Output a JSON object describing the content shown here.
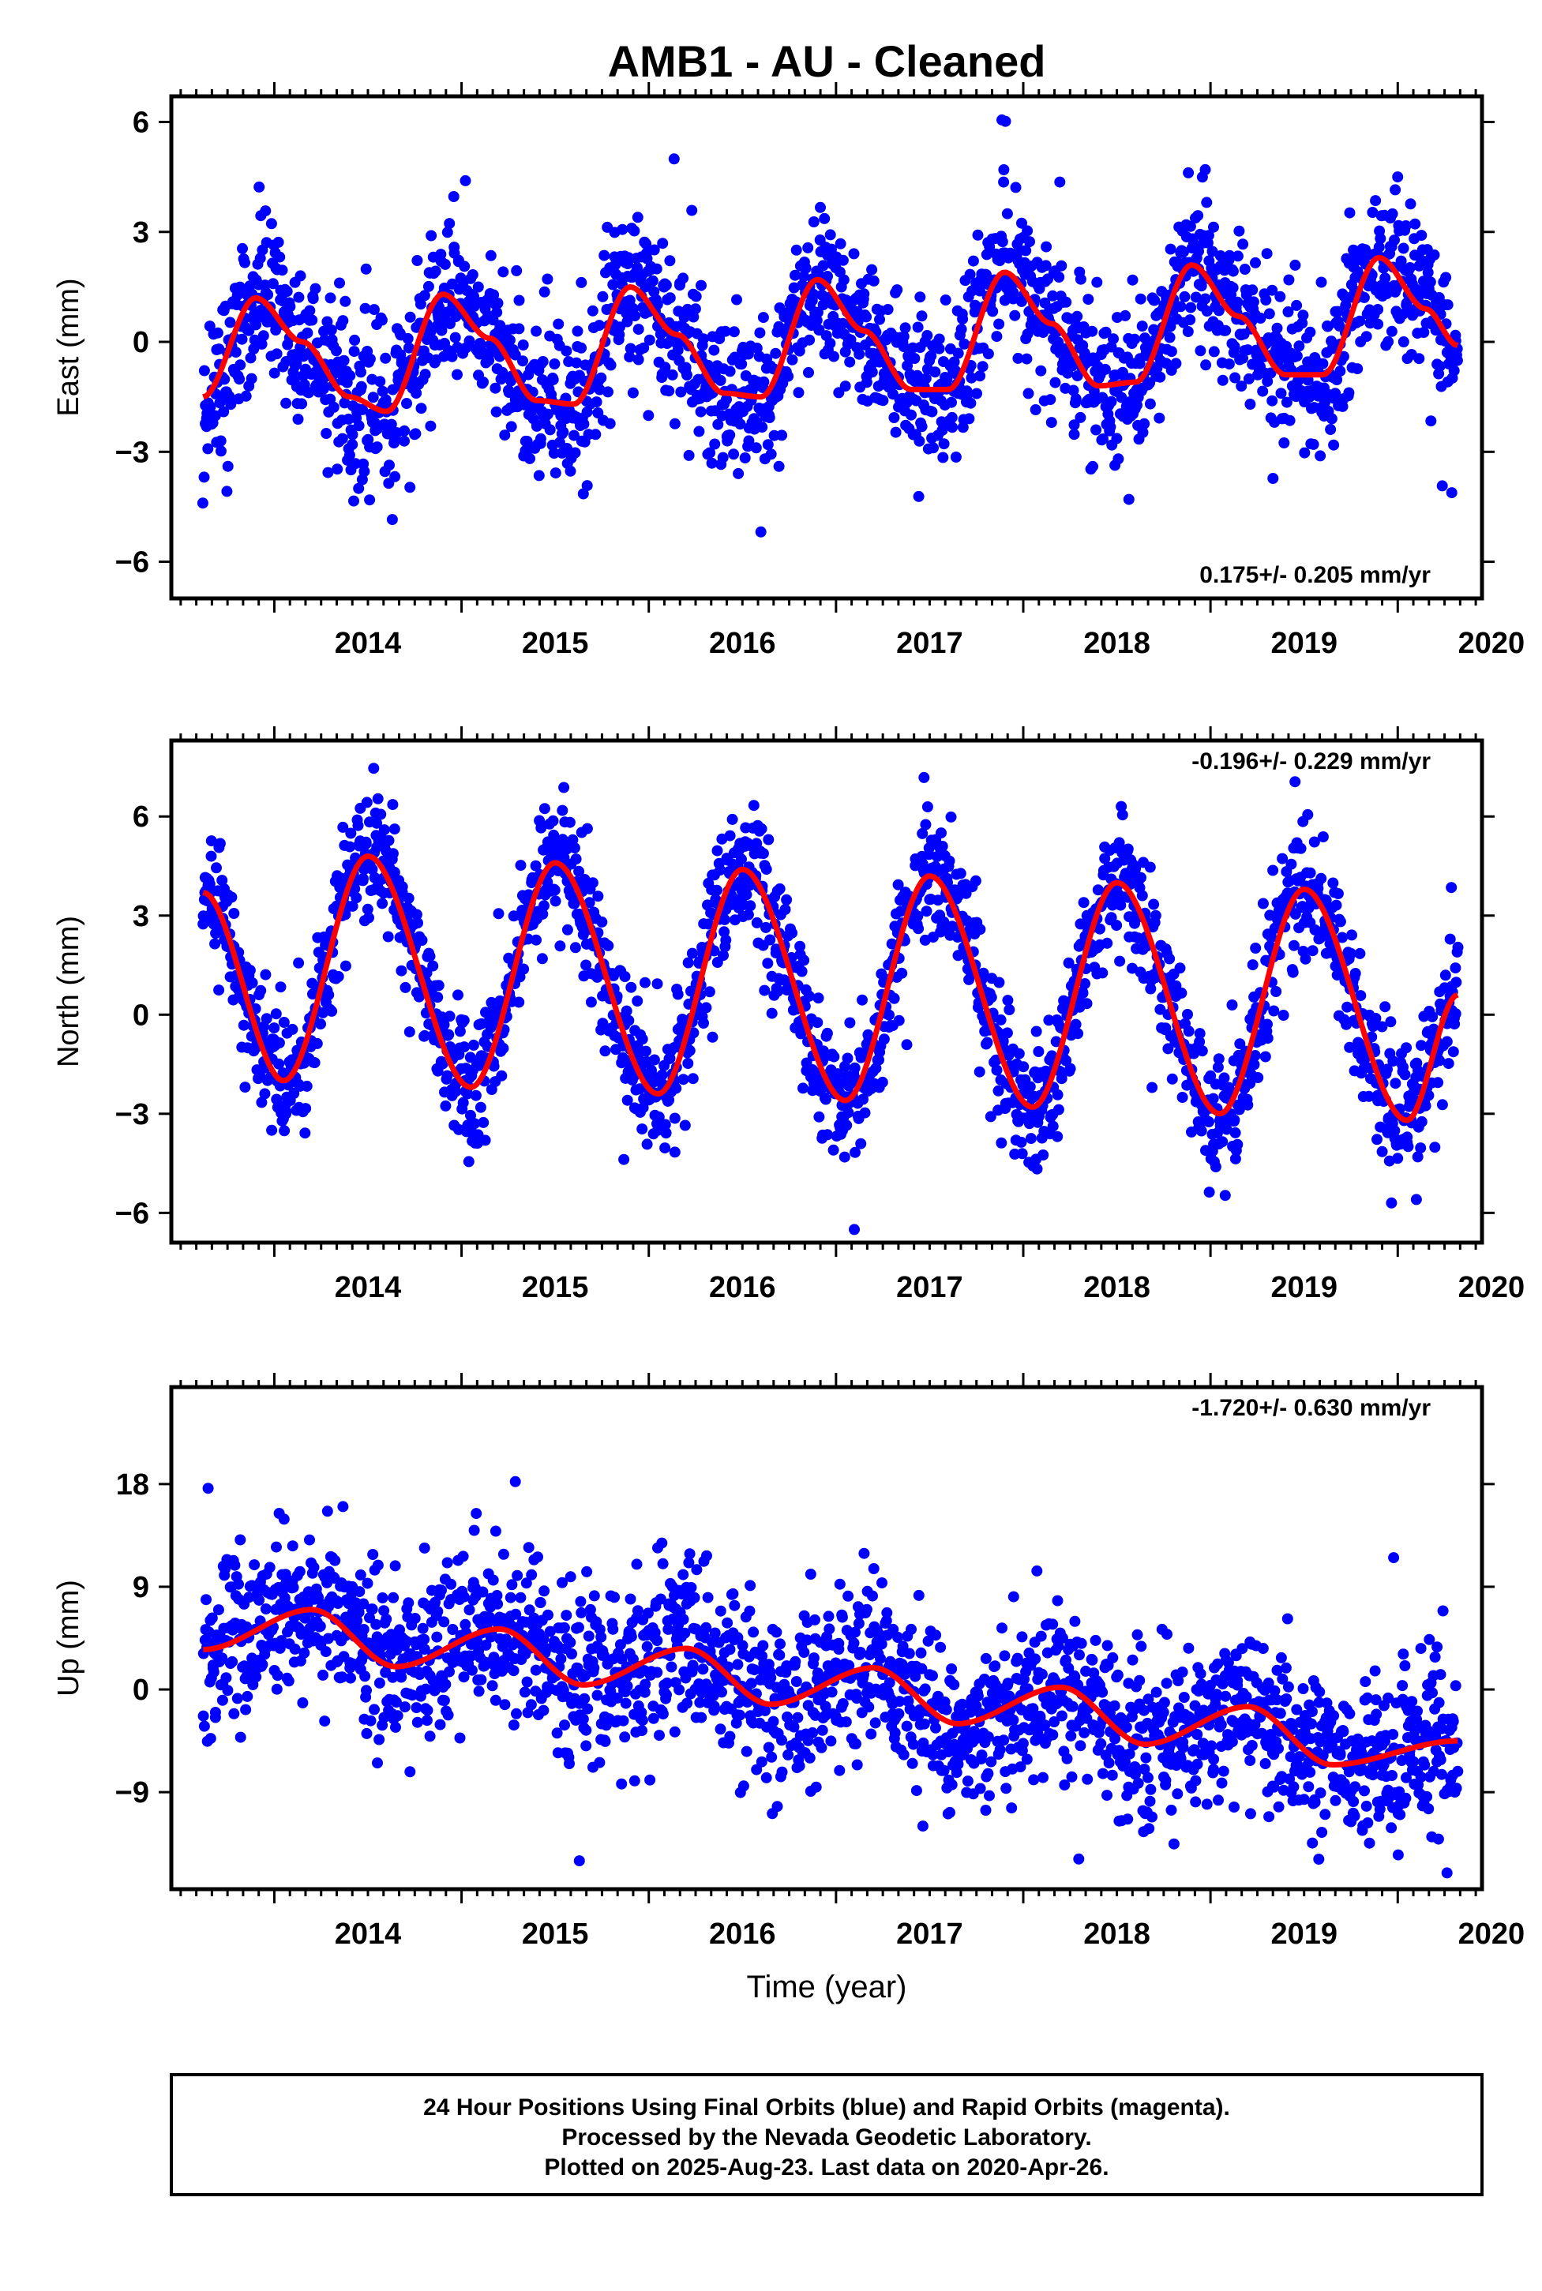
{
  "title": "AMB1  - AU - Cleaned",
  "xlabel": "Time (year)",
  "footer": {
    "line1": "24 Hour Positions Using Final Orbits (blue) and Rapid Orbits (magenta).",
    "line2": "Processed by the Nevada Geodetic Laboratory.",
    "line3": "Plotted on 2025-Aug-23. Last data on 2020-Apr-26."
  },
  "colors": {
    "points": "#0000ff",
    "fit": "#ff0000",
    "frame": "#000000"
  },
  "chart_data": [
    {
      "type": "scatter",
      "ylabel": "East (mm)",
      "rate": "0.175+/- 0.205 mm/yr",
      "xlim": [
        2013.45,
        2020.45
      ],
      "ylim": [
        -7.0,
        6.7
      ],
      "yticks": [
        -6,
        -3,
        0,
        3,
        6
      ],
      "ytick_labels": [
        "−6",
        "−3",
        "0",
        "3",
        "6"
      ],
      "xticks": [
        2014,
        2015,
        2016,
        2017,
        2018,
        2019,
        2020
      ],
      "xtick_labels": [
        "2014",
        "2015",
        "2016",
        "2017",
        "2018",
        "2019",
        "2020"
      ],
      "grid": false,
      "series": [
        {
          "name": "24 Hour Positions Using Final Orbits (blue)",
          "kind": "points",
          "x_range": [
            2013.62,
            2020.32
          ],
          "count": 2100,
          "trend_mm_per_yr": 0.175,
          "seasonal_amplitude_mm": 1.6,
          "scatter_sd_mm": 1.05
        },
        {
          "kind": "fit_line",
          "x": [
            2013.62,
            2013.9,
            2014.15,
            2014.4,
            2014.6,
            2014.9,
            2015.15,
            2015.4,
            2015.6,
            2015.9,
            2016.15,
            2016.4,
            2016.6,
            2016.9,
            2017.15,
            2017.4,
            2017.6,
            2017.9,
            2018.15,
            2018.4,
            2018.6,
            2018.9,
            2019.15,
            2019.4,
            2019.6,
            2019.9,
            2020.15,
            2020.32
          ],
          "y": [
            -1.5,
            1.2,
            0.0,
            -1.5,
            -1.9,
            1.3,
            0.1,
            -1.6,
            -1.7,
            1.5,
            0.2,
            -1.4,
            -1.5,
            1.7,
            0.3,
            -1.3,
            -1.3,
            1.9,
            0.5,
            -1.2,
            -1.1,
            2.1,
            0.7,
            -0.9,
            -0.9,
            2.3,
            0.9,
            -0.1
          ]
        }
      ]
    },
    {
      "type": "scatter",
      "ylabel": "North (mm)",
      "rate": "-0.196+/- 0.229 mm/yr",
      "xlim": [
        2013.45,
        2020.45
      ],
      "ylim": [
        -6.9,
        8.3
      ],
      "yticks": [
        -6,
        -3,
        0,
        3,
        6
      ],
      "ytick_labels": [
        "−6",
        "−3",
        "0",
        "3",
        "6"
      ],
      "xticks": [
        2014,
        2015,
        2016,
        2017,
        2018,
        2019,
        2020
      ],
      "xtick_labels": [
        "2014",
        "2015",
        "2016",
        "2017",
        "2018",
        "2019",
        "2020"
      ],
      "grid": false,
      "series": [
        {
          "name": "24 Hour Positions Using Final Orbits (blue)",
          "kind": "points",
          "x_range": [
            2013.62,
            2020.32
          ],
          "count": 2100,
          "trend_mm_per_yr": -0.196,
          "seasonal_amplitude_mm": 3.5,
          "scatter_sd_mm": 1.0
        },
        {
          "kind": "fit_line",
          "x": [
            2013.62,
            2014.05,
            2014.5,
            2015.05,
            2015.5,
            2016.05,
            2016.5,
            2017.05,
            2017.5,
            2018.05,
            2018.5,
            2019.05,
            2019.5,
            2020.05,
            2020.32
          ],
          "y": [
            3.7,
            -2.0,
            4.8,
            -2.2,
            4.6,
            -2.4,
            4.4,
            -2.6,
            4.2,
            -2.8,
            4.0,
            -3.0,
            3.8,
            -3.2,
            0.6
          ]
        }
      ]
    },
    {
      "type": "scatter",
      "ylabel": "Up (mm)",
      "rate": "-1.720+/- 0.630 mm/yr",
      "xlim": [
        2013.45,
        2020.45
      ],
      "ylim": [
        -17.5,
        26.5
      ],
      "yticks": [
        -9,
        0,
        9,
        18
      ],
      "ytick_labels": [
        "−9",
        "0",
        "9",
        "18"
      ],
      "xticks": [
        2014,
        2015,
        2016,
        2017,
        2018,
        2019,
        2020
      ],
      "xtick_labels": [
        "2014",
        "2015",
        "2016",
        "2017",
        "2018",
        "2019",
        "2020"
      ],
      "grid": false,
      "series": [
        {
          "name": "24 Hour Positions Using Final Orbits (blue)",
          "kind": "points",
          "x_range": [
            2013.62,
            2020.32
          ],
          "count": 2100,
          "trend_mm_per_yr": -1.72,
          "seasonal_amplitude_mm": 2.4,
          "scatter_sd_mm": 3.6
        },
        {
          "kind": "fit_line",
          "x": [
            2013.62,
            2014.2,
            2014.65,
            2015.2,
            2015.65,
            2016.2,
            2016.65,
            2017.2,
            2017.65,
            2018.2,
            2018.65,
            2019.2,
            2019.65,
            2020.32
          ],
          "y": [
            3.5,
            7.0,
            2.0,
            5.3,
            0.4,
            3.6,
            -1.3,
            1.9,
            -3.0,
            0.2,
            -4.8,
            -1.5,
            -6.6,
            -4.5
          ]
        }
      ]
    }
  ]
}
